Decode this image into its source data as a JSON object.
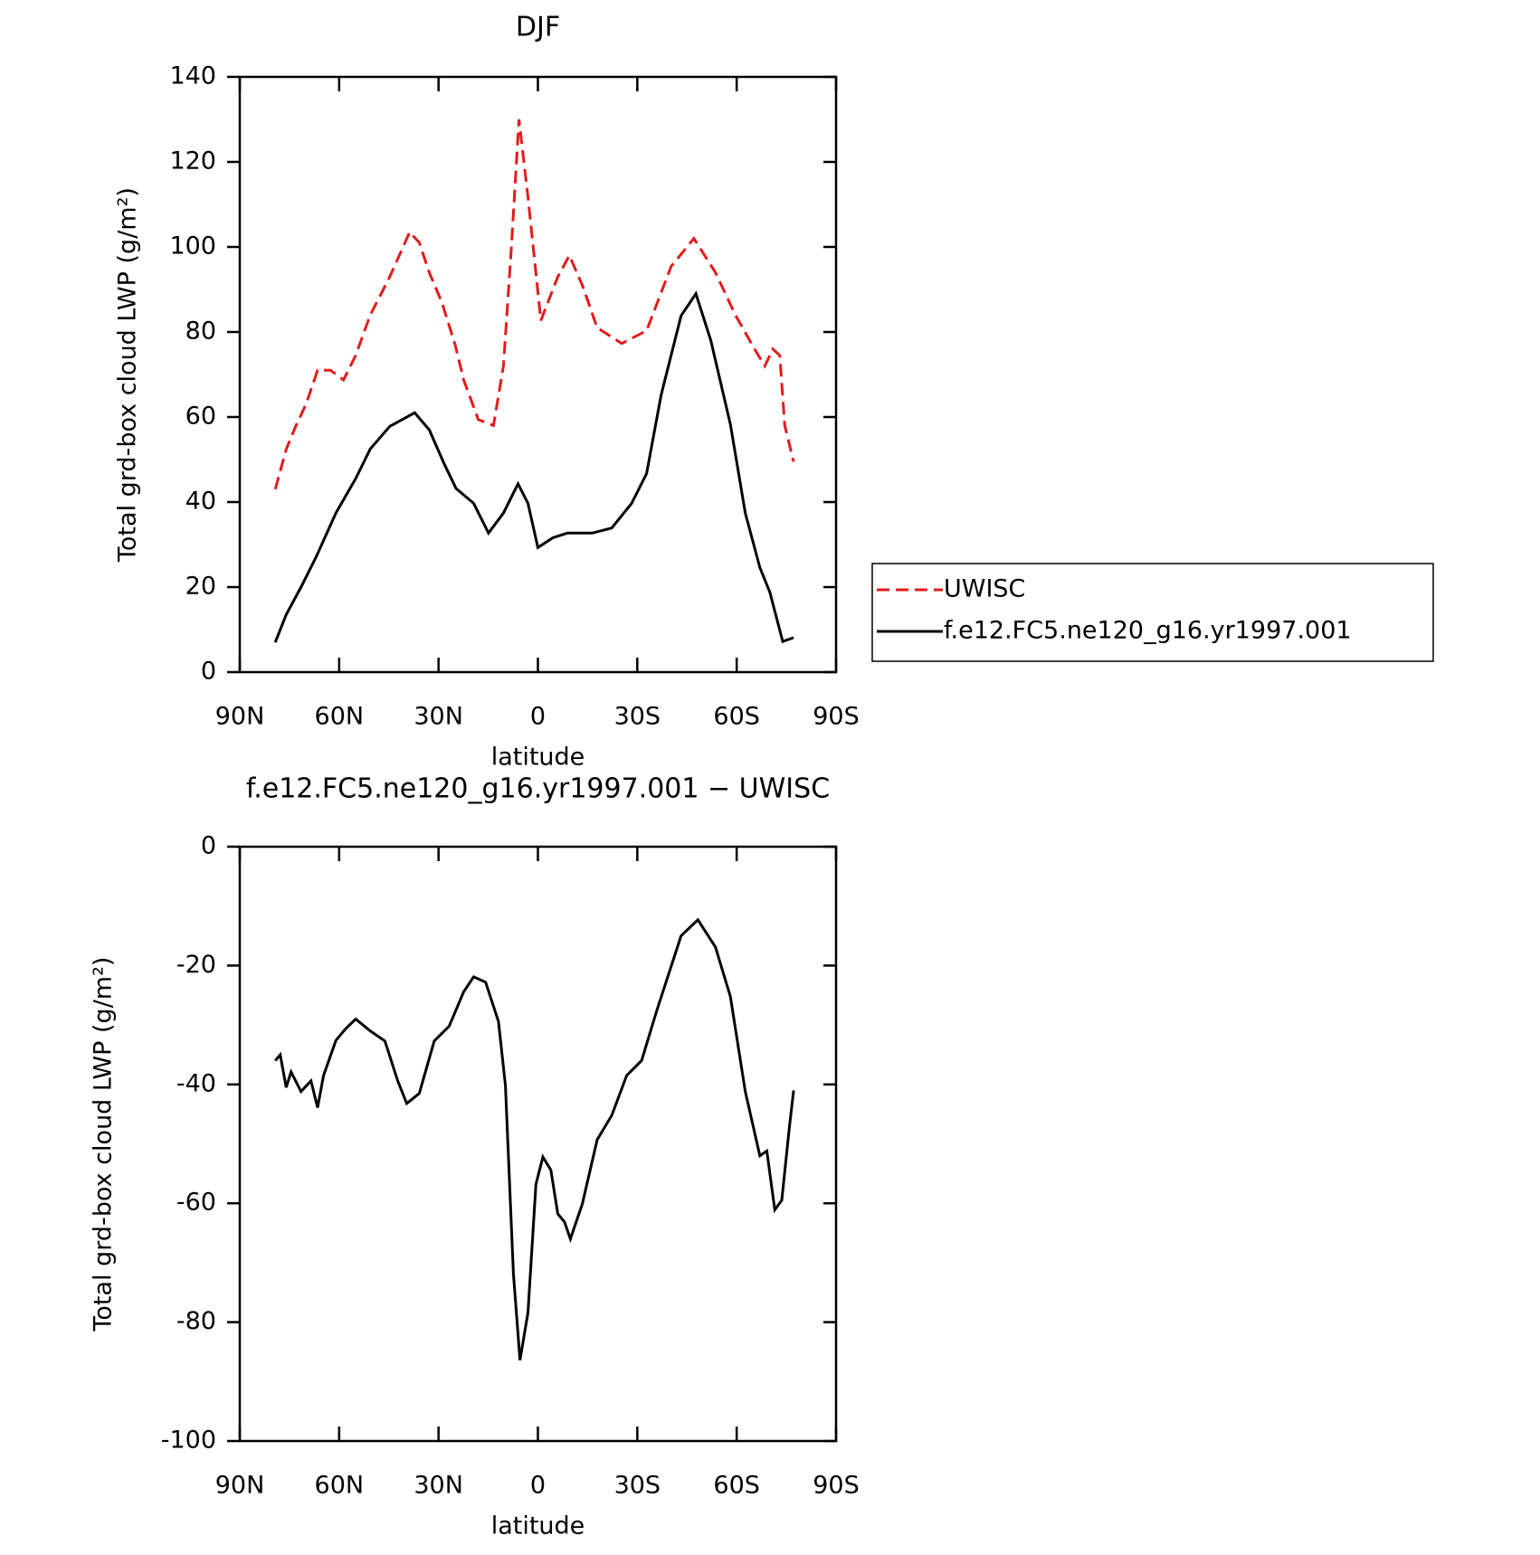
{
  "chart_data": [
    {
      "type": "line",
      "title": "DJF",
      "xlabel": "latitude",
      "ylabel": "Total grd-box cloud LWP (g/m²)",
      "xlim": [
        90,
        -90
      ],
      "xticks": [
        {
          "value": 90,
          "label": "90N"
        },
        {
          "value": 60,
          "label": "60N"
        },
        {
          "value": 30,
          "label": "30N"
        },
        0,
        {
          "value": -30,
          "label": "30S"
        },
        {
          "value": -60,
          "label": "60S"
        },
        {
          "value": -90,
          "label": "90S"
        }
      ],
      "ylim": [
        0,
        140
      ],
      "yticks": [
        0,
        20,
        40,
        60,
        80,
        100,
        120,
        140
      ],
      "legend": "outside-right",
      "series": [
        {
          "name": "UWISC",
          "color": "#e41a1c",
          "dash": true,
          "x": [
            79.3,
            76,
            73,
            70,
            66.5,
            62.6,
            58.7,
            55,
            50.6,
            44.7,
            38.7,
            35.8,
            32.8,
            29,
            25,
            22.4,
            18,
            13.4,
            10.4,
            8,
            5.7,
            3,
            -0.9,
            -6,
            -9.5,
            -13.4,
            -17.9,
            -25.3,
            -32.8,
            -40.2,
            -47.1,
            -53.6,
            -59.6,
            -65.6,
            -68.5,
            -70.9,
            -73,
            -74.5,
            -77.2
          ],
          "values": [
            43,
            52.4,
            58,
            63,
            71,
            71,
            68.7,
            74.5,
            84,
            93,
            103.5,
            101,
            94,
            87,
            77,
            68.7,
            59.4,
            58,
            72,
            100,
            130,
            111.7,
            82.7,
            93,
            98,
            91,
            81,
            77.3,
            80.3,
            95.4,
            102,
            94,
            84,
            75.7,
            72,
            76,
            74.5,
            58,
            49.5
          ]
        },
        {
          "name": "f.e12.FC5.ne120_g16.yr1997.001",
          "color": "#000000",
          "dash": false,
          "x": [
            79.3,
            76,
            71.5,
            67,
            61,
            55,
            50.6,
            44.7,
            37.2,
            32.8,
            28.3,
            24.7,
            19.4,
            14.9,
            10.4,
            6,
            3,
            0,
            -4.5,
            -8.9,
            -16.4,
            -22.3,
            -28.3,
            -32.8,
            -37.2,
            -43.2,
            -47.7,
            -52.2,
            -58.1,
            -62.6,
            -67,
            -70,
            -73.9,
            -77.2
          ],
          "values": [
            7,
            13.5,
            20,
            27,
            37.4,
            45.5,
            52.5,
            57.8,
            61,
            57,
            49,
            43.2,
            39.7,
            32.7,
            37.4,
            44.3,
            39.7,
            29.3,
            31.6,
            32.7,
            32.7,
            33.9,
            39.7,
            46.7,
            65.2,
            83.8,
            89,
            78,
            58.3,
            37.4,
            24.6,
            18.8,
            7.2,
            8.1
          ]
        }
      ]
    },
    {
      "type": "line",
      "title": "f.e12.FC5.ne120_g16.yr1997.001 − UWISC",
      "xlabel": "latitude",
      "ylabel": "Total grd-box cloud LWP (g/m²)",
      "xlim": [
        90,
        -90
      ],
      "xticks": [
        {
          "value": 90,
          "label": "90N"
        },
        {
          "value": 60,
          "label": "60N"
        },
        {
          "value": 30,
          "label": "30N"
        },
        0,
        {
          "value": -30,
          "label": "30S"
        },
        {
          "value": -60,
          "label": "60S"
        },
        {
          "value": -90,
          "label": "90S"
        }
      ],
      "ylim": [
        -100,
        0
      ],
      "yticks": [
        -100,
        -80,
        -60,
        -40,
        -20,
        0
      ],
      "color": "#000000",
      "x": [
        79.3,
        77.8,
        76,
        74.5,
        71.5,
        68.5,
        66.5,
        64.7,
        61,
        58,
        55,
        50.6,
        46.2,
        42.3,
        39.6,
        35.8,
        31.3,
        26.8,
        22.4,
        19.4,
        15.8,
        11.9,
        9.8,
        7.4,
        5.4,
        3,
        0.6,
        -1.5,
        -3.9,
        -6,
        -8,
        -9.8,
        -13.4,
        -17.9,
        -22.3,
        -26.8,
        -31.3,
        -35.8,
        -43.2,
        -48.3,
        -53.6,
        -58.1,
        -62.6,
        -67,
        -69.1,
        -71.5,
        -73.6,
        -76,
        -77.2
      ],
      "values": [
        -36,
        -35,
        -40.5,
        -37.9,
        -41.2,
        -39.4,
        -43.9,
        -38.5,
        -32.6,
        -30.6,
        -29,
        -31,
        -32.7,
        -39.4,
        -43.2,
        -41.5,
        -32.7,
        -30.2,
        -24.4,
        -21.9,
        -22.8,
        -29.4,
        -40.2,
        -71.8,
        -86.4,
        -78.4,
        -56.8,
        -52.2,
        -54.4,
        -61.8,
        -63.1,
        -66,
        -60.1,
        -49.3,
        -45.2,
        -38.5,
        -36,
        -27.7,
        -15,
        -12.3,
        -16.9,
        -25.2,
        -41.2,
        -52,
        -51.2,
        -61.1,
        -59.5,
        -46.8,
        -41
      ]
    }
  ]
}
